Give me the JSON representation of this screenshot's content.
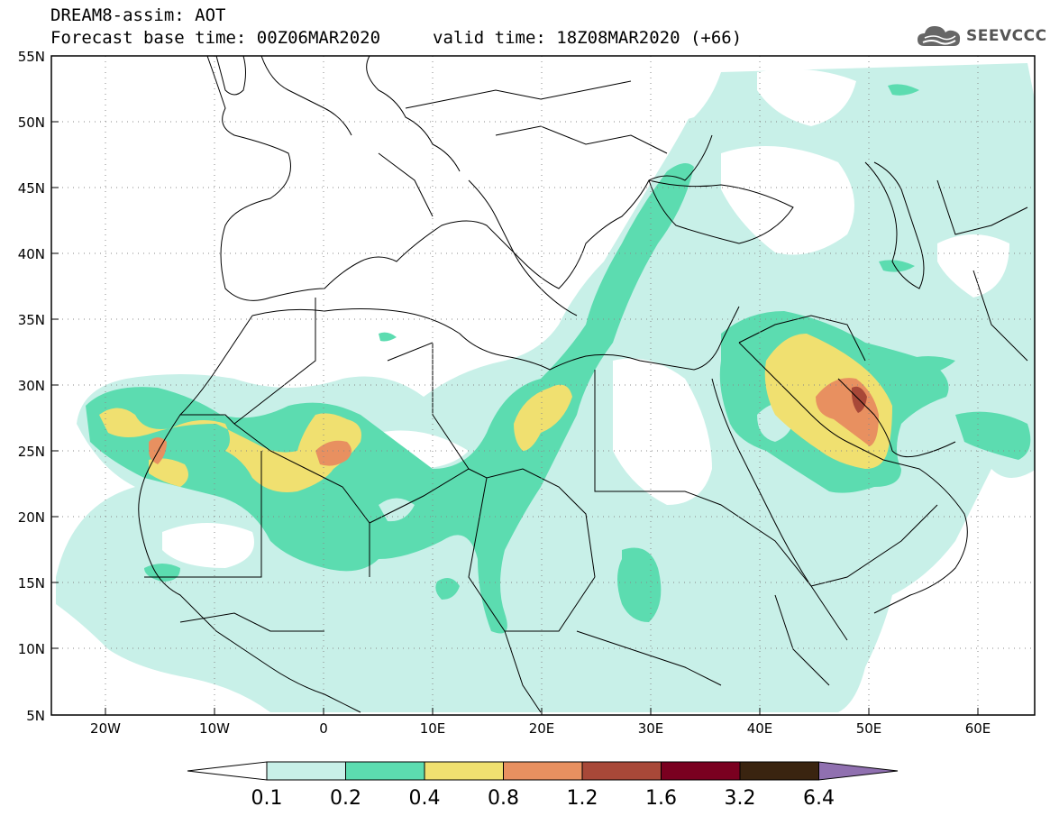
{
  "header": {
    "line1": "DREAM8-assim: AOT",
    "base": "Forecast base time: 00Z06MAR2020",
    "valid": "valid time: 18Z08MAR2020 (+66)"
  },
  "logo": {
    "text": "SEEVCCC",
    "icon": "cloud-icon"
  },
  "map": {
    "projection": "lat-lon",
    "lon_range": [
      -25,
      65
    ],
    "lat_range": [
      5,
      55
    ],
    "grid": "dotted",
    "lon_ticks": [
      "20W",
      "10W",
      "0",
      "10E",
      "20E",
      "30E",
      "40E",
      "50E",
      "60E"
    ],
    "lat_ticks": [
      "55N",
      "50N",
      "45N",
      "40N",
      "35N",
      "30N",
      "25N",
      "20N",
      "15N",
      "10N",
      "5N"
    ]
  },
  "colorbar": {
    "levels": [
      "0.1",
      "0.2",
      "0.4",
      "0.8",
      "1.2",
      "1.6",
      "3.2",
      "6.4"
    ],
    "colors": [
      "#c8f0e8",
      "#5cdcb0",
      "#f0e070",
      "#e89060",
      "#a84838",
      "#7a0020",
      "#3a2410",
      "#9070b0"
    ],
    "under_color": "#ffffff"
  }
}
